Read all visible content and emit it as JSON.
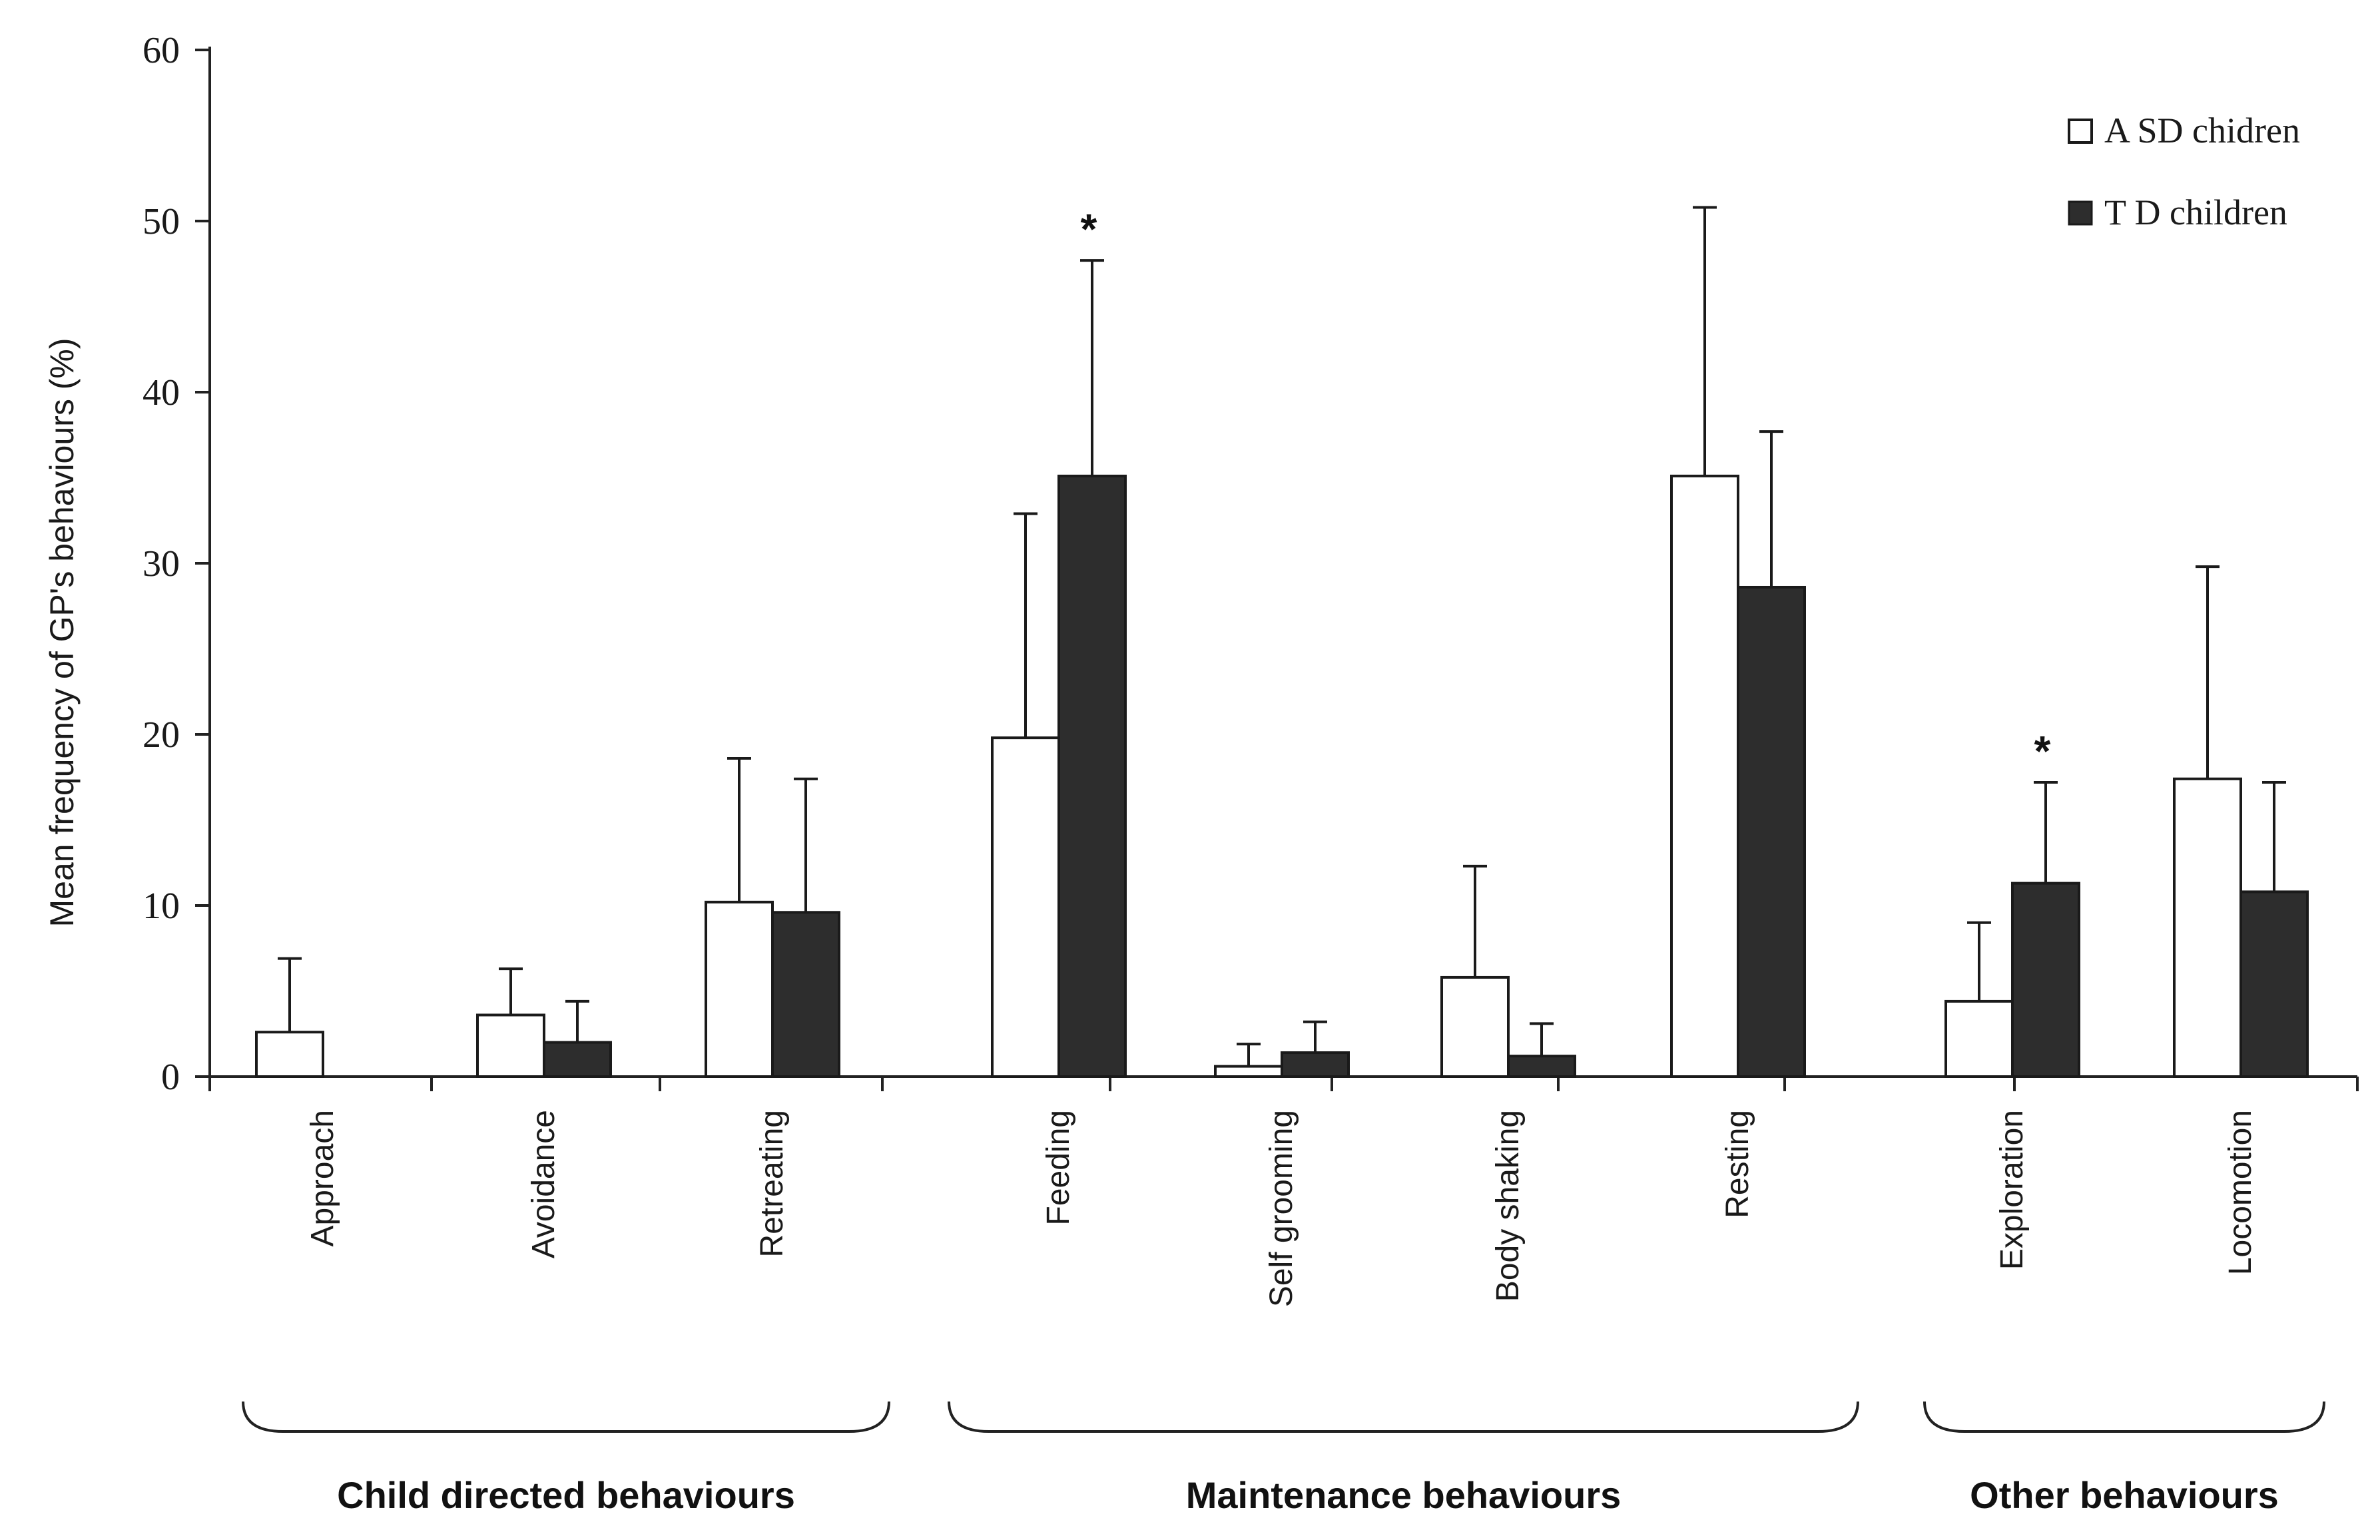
{
  "chart_data": {
    "type": "bar",
    "ylabel": "Mean frequency of GP's behaviours (%)",
    "ylim": [
      0,
      60
    ],
    "yticks": [
      0,
      10,
      20,
      30,
      40,
      50,
      60
    ],
    "categories": [
      "Approach",
      "Avoidance",
      "Retreating",
      "Feeding",
      "Self grooming",
      "Body shaking",
      "Resting",
      "Exploration",
      "Locomotion"
    ],
    "series": [
      {
        "name": "A SD chidren",
        "color": "#ffffff",
        "values": [
          2.6,
          3.6,
          10.2,
          19.8,
          0.6,
          5.8,
          35.1,
          4.4,
          17.4
        ],
        "error": [
          4.3,
          2.7,
          8.4,
          13.1,
          1.3,
          6.5,
          15.7,
          4.6,
          12.4
        ]
      },
      {
        "name": "T D children",
        "color": "#2d2d2d",
        "values": [
          0,
          2.0,
          9.6,
          35.1,
          1.4,
          1.2,
          28.6,
          11.3,
          10.8
        ],
        "error": [
          0,
          2.4,
          7.8,
          12.6,
          1.8,
          1.9,
          9.1,
          5.9,
          6.4
        ]
      }
    ],
    "significance": [
      {
        "category": "Feeding",
        "label": "*"
      },
      {
        "category": "Exploration",
        "label": "*"
      }
    ],
    "groups": [
      {
        "label": "Child directed behaviours",
        "categories": [
          "Approach",
          "Avoidance",
          "Retreating"
        ]
      },
      {
        "label": "Maintenance behaviours",
        "categories": [
          "Feeding",
          "Self grooming",
          "Body shaking",
          "Resting"
        ]
      },
      {
        "label": "Other behaviours",
        "categories": [
          "Exploration",
          "Locomotion"
        ]
      }
    ],
    "legend_position": "top-right"
  },
  "colors": {
    "axis": "#222222",
    "bar_outline": "#1a1a1a",
    "td_fill": "#2d2d2d",
    "asd_fill": "#ffffff"
  }
}
